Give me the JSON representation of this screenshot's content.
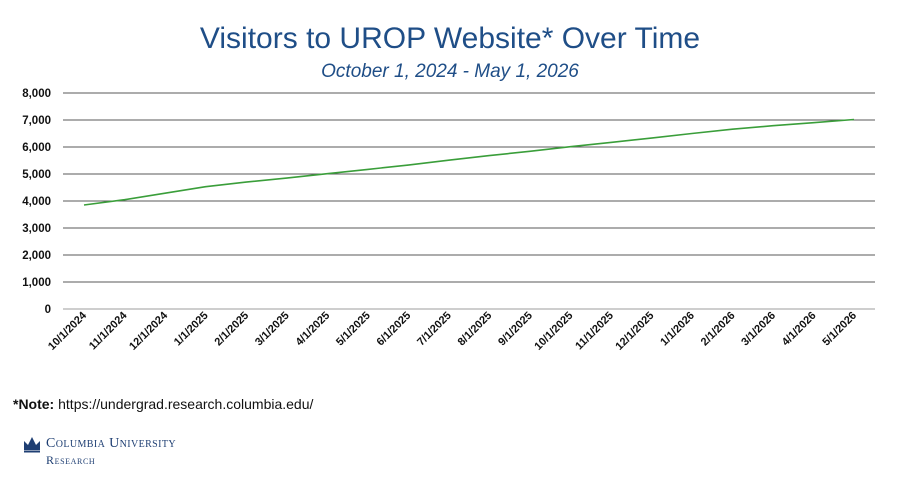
{
  "header": {
    "title": "Visitors to UROP Website* Over Time",
    "subtitle": "October 1, 2024 - May 1, 2026"
  },
  "note": {
    "label": "*Note:",
    "text": " https://undergrad.research.columbia.edu/"
  },
  "logo": {
    "line1": "Columbia University",
    "line2": "Research",
    "color": "#1f3f73"
  },
  "chart_data": {
    "type": "line",
    "x": [
      "10/1/2024",
      "11/1/2024",
      "12/1/2024",
      "1/1/2025",
      "2/1/2025",
      "3/1/2025",
      "4/1/2025",
      "5/1/2025",
      "6/1/2025",
      "7/1/2025",
      "8/1/2025",
      "9/1/2025",
      "10/1/2025",
      "11/1/2025",
      "12/1/2025",
      "1/1/2026",
      "2/1/2026",
      "3/1/2026",
      "4/1/2026",
      "5/1/2026"
    ],
    "series": [
      {
        "values": [
          3850,
          4050,
          4290,
          4530,
          4700,
          4850,
          5010,
          5170,
          5330,
          5510,
          5680,
          5840,
          6010,
          6170,
          6330,
          6500,
          6660,
          6790,
          6900,
          7020
        ],
        "color": "#3a9e3a"
      }
    ],
    "yticks": [
      0,
      1000,
      2000,
      3000,
      4000,
      5000,
      6000,
      7000,
      8000
    ],
    "ylim": [
      0,
      8000
    ],
    "grid": "horizontal",
    "xlabel": "",
    "ylabel": ""
  }
}
